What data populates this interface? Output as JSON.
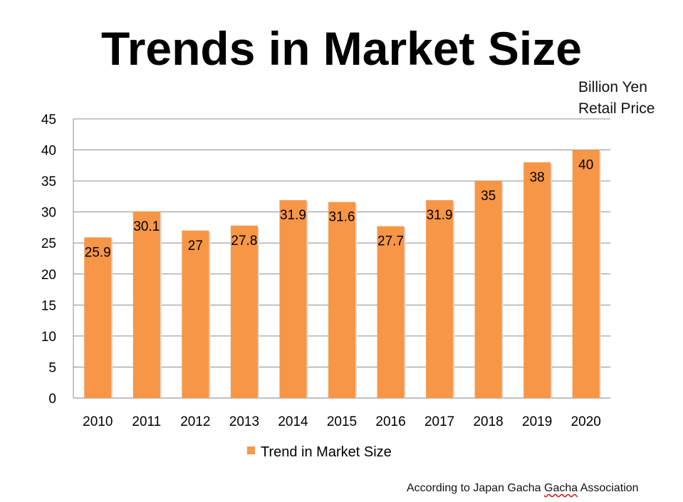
{
  "chart_data": {
    "type": "bar",
    "title": "Trends in Market Size",
    "units": [
      "Billion Yen",
      "Retail Price"
    ],
    "categories": [
      "2010",
      "2011",
      "2012",
      "2013",
      "2014",
      "2015",
      "2016",
      "2017",
      "2018",
      "2019",
      "2020"
    ],
    "series": [
      {
        "name": "Trend in Market Size",
        "values": [
          25.9,
          30.1,
          27,
          27.8,
          31.9,
          31.6,
          27.7,
          31.9,
          35,
          38,
          40
        ],
        "color": "#f79646"
      }
    ],
    "data_labels": [
      "25.9",
      "30.1",
      "27",
      "27.8",
      "31.9",
      "31.6",
      "27.7",
      "31.9",
      "35",
      "38",
      "40"
    ],
    "yticks": [
      "0",
      "5",
      "10",
      "15",
      "20",
      "25",
      "30",
      "35",
      "40",
      "45"
    ],
    "ylim": [
      0,
      45
    ],
    "grid": true,
    "legend_position": "bottom",
    "xlabel": "",
    "ylabel": ""
  },
  "source": {
    "prefix": "According to Japan Gacha ",
    "underlined": "Gacha",
    "suffix": " Association"
  },
  "colors": {
    "bar": "#f79646",
    "grid": "#8c8c8c",
    "text": "#000000"
  }
}
